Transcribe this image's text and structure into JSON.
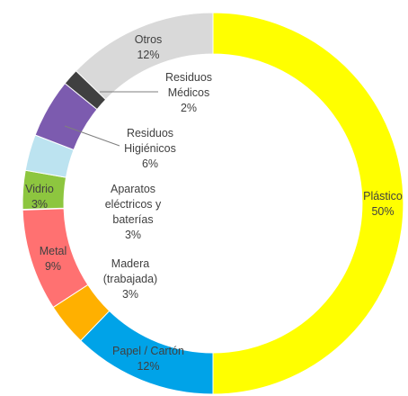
{
  "chart_data": {
    "type": "pie",
    "variant": "donut",
    "title": "",
    "slices": [
      {
        "name": "Plástico",
        "value": 50,
        "label_lines": [
          "Plástico",
          "50%"
        ],
        "color": "#FFFF00"
      },
      {
        "name": "Papel / Cartón",
        "value": 12,
        "label_lines": [
          "Papel / Cartón",
          "12%"
        ],
        "color": "#00A3E8"
      },
      {
        "name": "Madera (trabajada)",
        "value": 3,
        "label_lines": [
          "Madera",
          "(trabajada)",
          "3%"
        ],
        "color": "#FFB000"
      },
      {
        "name": "Metal",
        "value": 9,
        "label_lines": [
          "Metal",
          "9%"
        ],
        "color": "#FF7171"
      },
      {
        "name": "Aparatos eléctricos y baterías",
        "value": 3,
        "label_lines": [
          "Aparatos",
          "eléctricos y",
          "baterías",
          "3%"
        ],
        "color": "#FFFFFF"
      },
      {
        "name": "Vidrio",
        "value": 3,
        "label_lines": [
          "Vidrio",
          "3%"
        ],
        "color": "#8DC63F"
      },
      {
        "name": "Residuos Higiénicos",
        "value": 6,
        "label_lines": [
          "Residuos",
          "Higiénicos",
          "6%"
        ],
        "color": "#BCE3F0"
      },
      {
        "name": "Residuos Médicos",
        "value": 2,
        "label_lines": [
          "Residuos",
          "Médicos",
          "2%"
        ],
        "color": "#7C5BAF"
      },
      {
        "name": "Otros",
        "value": 12,
        "label_lines": [
          "Otros",
          "12%"
        ],
        "color": "#D9D9D9"
      }
    ],
    "extra_segment_color": "#404040",
    "legend": "none",
    "text_color": "#404040"
  }
}
